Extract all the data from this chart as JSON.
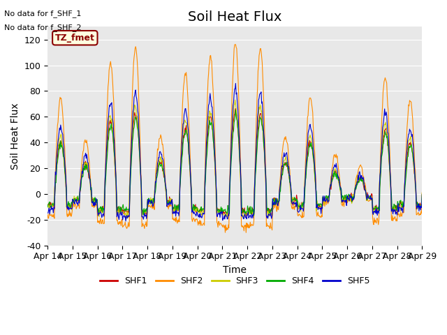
{
  "title": "Soil Heat Flux",
  "ylabel": "Soil Heat Flux",
  "xlabel": "Time",
  "ylim": [
    -40,
    130
  ],
  "series_colors": {
    "SHF1": "#cc0000",
    "SHF2": "#ff8c00",
    "SHF3": "#cccc00",
    "SHF4": "#00aa00",
    "SHF5": "#0000cc"
  },
  "legend_labels": [
    "SHF1",
    "SHF2",
    "SHF3",
    "SHF4",
    "SHF5"
  ],
  "xtick_labels": [
    "Apr 14",
    "Apr 15",
    "Apr 16",
    "Apr 17",
    "Apr 18",
    "Apr 19",
    "Apr 20",
    "Apr 21",
    "Apr 22",
    "Apr 23",
    "Apr 24",
    "Apr 25",
    "Apr 26",
    "Apr 27",
    "Apr 28",
    "Apr 29"
  ],
  "ytick_values": [
    -40,
    -20,
    0,
    20,
    40,
    60,
    80,
    100,
    120
  ],
  "annotations": [
    "No data for f_SHF_1",
    "No data for f_SHF_2"
  ],
  "box_label": "TZ_fmet",
  "background_color": "#e8e8e8",
  "title_fontsize": 14,
  "label_fontsize": 10,
  "tick_fontsize": 9
}
